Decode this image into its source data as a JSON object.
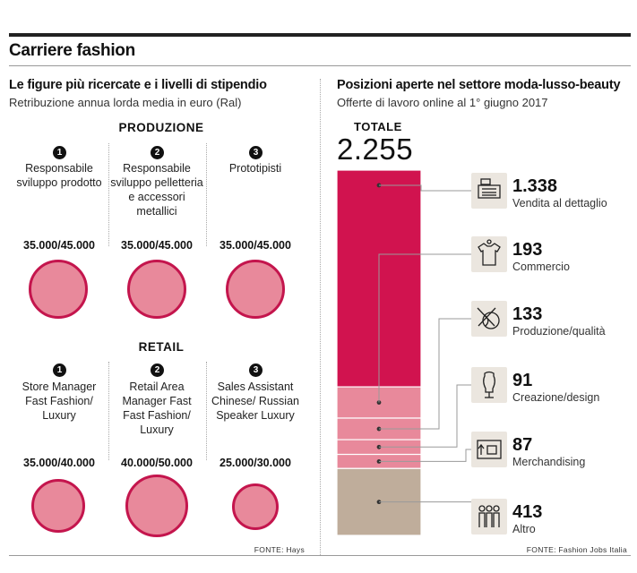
{
  "title": "Carriere fashion",
  "left": {
    "title": "Le figure più ricercate e i livelli di stipendio",
    "subtitle": "Retribuzione annua lorda media in euro (Ral)",
    "source": "FONTE: Hays",
    "groups": [
      {
        "name": "PRODUZIONE",
        "items": [
          {
            "rank": "1",
            "role": "Responsabile sviluppo prodotto",
            "salary": "35.000/45.000",
            "min": 35000,
            "max": 45000
          },
          {
            "rank": "2",
            "role": "Responsabile sviluppo pelletteria e accessori metallici",
            "salary": "35.000/45.000",
            "min": 35000,
            "max": 45000
          },
          {
            "rank": "3",
            "role": "Prototipisti",
            "salary": "35.000/45.000",
            "min": 35000,
            "max": 45000
          }
        ]
      },
      {
        "name": "RETAIL",
        "items": [
          {
            "rank": "1",
            "role": "Store Manager Fast Fashion/ Luxury",
            "salary": "35.000/40.000",
            "min": 35000,
            "max": 40000
          },
          {
            "rank": "2",
            "role": "Retail Area Manager Fast Fast Fashion/ Luxury",
            "salary": "40.000/50.000",
            "min": 40000,
            "max": 50000
          },
          {
            "rank": "3",
            "role": "Sales Assistant Chinese/ Russian Speaker Luxury",
            "salary": "25.000/30.000",
            "min": 25000,
            "max": 30000
          }
        ]
      }
    ]
  },
  "right": {
    "title": "Posizioni aperte nel settore moda-lusso-beauty",
    "subtitle": "Offerte di lavoro online  al 1° giugno 2017",
    "source": "FONTE: Fashion Jobs Italia",
    "total_label": "TOTALE",
    "total_value": "2.255"
  },
  "chart_data": {
    "type": "bar",
    "stacked": true,
    "title": "Posizioni aperte nel settore moda-lusso-beauty",
    "total": 2255,
    "categories": [
      "Vendita al dettaglio",
      "Commercio",
      "Produzione/qualità",
      "Creazione/design",
      "Merchandising",
      "Altro"
    ],
    "values": [
      1338,
      193,
      133,
      91,
      87,
      413
    ],
    "labels": [
      "1.338",
      "193",
      "133",
      "91",
      "87",
      "413"
    ],
    "icons": [
      "cash-register-icon",
      "tshirt-icon",
      "yarn-ball-icon",
      "mannequin-icon",
      "merchandising-icon",
      "people-icon"
    ],
    "colors": [
      "#d1134f",
      "#e8899b",
      "#e8899b",
      "#e8899b",
      "#e8899b",
      "#bfad9b"
    ]
  },
  "colors": {
    "accent": "#d1134f",
    "light": "#e8899b",
    "other": "#bfad9b"
  }
}
